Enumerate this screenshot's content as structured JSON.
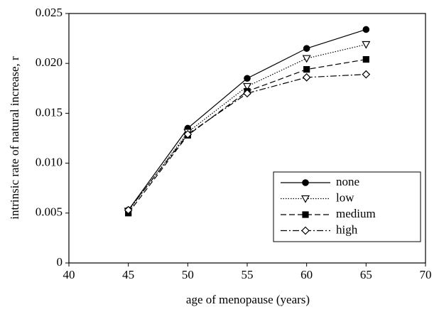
{
  "chart_data": {
    "type": "line",
    "x_label": "age of menopause (years)",
    "y_label": "intrinsic rate of natural increase, r",
    "x": [
      45,
      50,
      55,
      60,
      65
    ],
    "xlim": [
      40,
      70
    ],
    "xticks": [
      40,
      45,
      50,
      55,
      60,
      65,
      70
    ],
    "ylim": [
      0,
      0.025
    ],
    "yticks": [
      0,
      0.005,
      {
        "value": 0.01,
        "label": "0.010"
      },
      0.015,
      {
        "value": 0.02,
        "label": "0.020"
      },
      0.025
    ],
    "legend": "lower right",
    "series": [
      {
        "name": "none",
        "color": "#000000",
        "marker": "circle-filled",
        "dash": "solid",
        "values": [
          0.0053,
          0.0135,
          0.0185,
          0.0215,
          0.0234
        ]
      },
      {
        "name": "low",
        "color": "#000000",
        "marker": "triangle-down-open",
        "dash": "dotted",
        "values": [
          0.0052,
          0.0131,
          0.0177,
          0.0205,
          0.0219
        ]
      },
      {
        "name": "medium",
        "color": "#000000",
        "marker": "square-filled",
        "dash": "dashed",
        "values": [
          0.005,
          0.0128,
          0.0172,
          0.0194,
          0.0204
        ]
      },
      {
        "name": "high",
        "color": "#000000",
        "marker": "diamond-open",
        "dash": "dashdot",
        "values": [
          0.0053,
          0.0129,
          0.017,
          0.0186,
          0.0189
        ]
      }
    ]
  }
}
